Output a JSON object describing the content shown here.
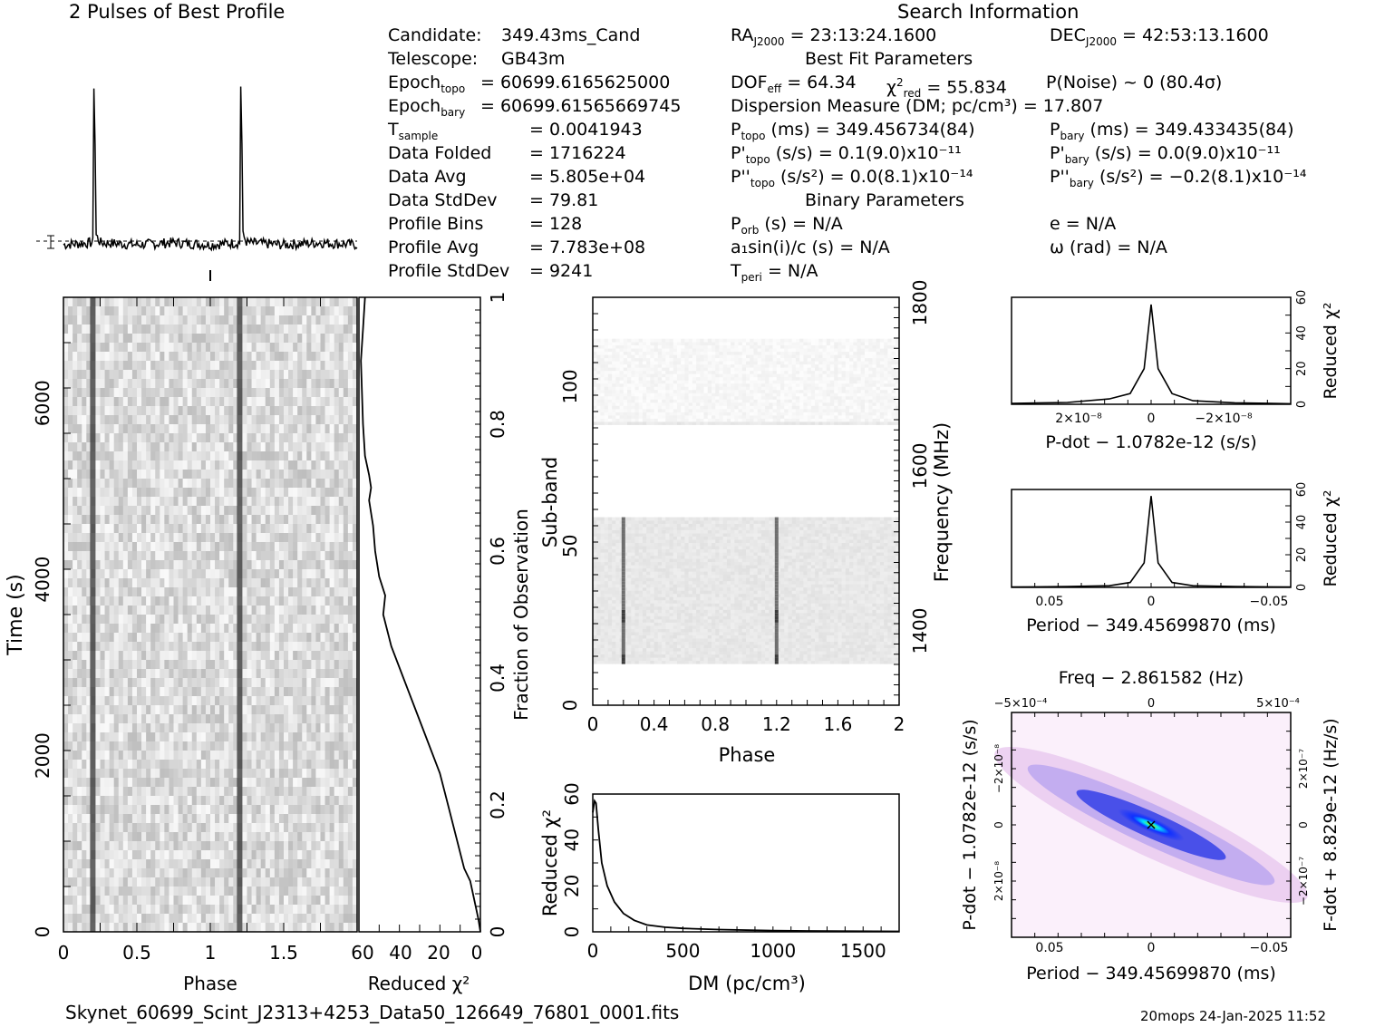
{
  "header": {
    "profile_title": "2 Pulses of Best Profile",
    "search_title": "Search Information",
    "best_fit_title": "Best Fit Parameters",
    "binary_title": "Binary Parameters"
  },
  "candidate_info": [
    {
      "label": "Candidate:",
      "value": "349.43ms_Cand"
    },
    {
      "label": "Telescope:",
      "value": "GB43m"
    },
    {
      "label": "Epoch",
      "sub": "topo",
      "value": "= 60699.6165625000"
    },
    {
      "label": "Epoch",
      "sub": "bary",
      "value": "= 60699.61565669745"
    },
    {
      "label": "T",
      "sub": "sample",
      "value": "=   0.0041943"
    },
    {
      "label": "Data Folded",
      "value": "=   1716224"
    },
    {
      "label": "Data Avg",
      "value": "=   5.805e+04"
    },
    {
      "label": "Data StdDev",
      "value": "=   79.81"
    },
    {
      "label": "Profile Bins",
      "value": "=   128"
    },
    {
      "label": "Profile Avg",
      "value": "=   7.783e+08"
    },
    {
      "label": "Profile StdDev",
      "value": "=   9241"
    }
  ],
  "search": {
    "ra": "= 23:13:24.1600",
    "dec": "= 42:53:13.1600",
    "dof": "= 64.34",
    "chi2red": "= 55.834",
    "pnoise": "P(Noise) ~ 0    (80.4σ)",
    "dm": "Dispersion Measure (DM; pc/cm³) = 17.807",
    "ptopo": "(ms) =   349.456734(84)",
    "pbary": "(ms) =   349.433435(84)",
    "pdtopo": "(s/s) =  0.1(9.0)x10⁻¹¹",
    "pdbary": "(s/s) = 0.0(9.0)x10⁻¹¹",
    "pddtopo": "(s/s²) = 0.0(8.1)x10⁻¹⁴",
    "pddbary": "(s/s²) = −0.2(8.1)x10⁻¹⁴",
    "porb": "(s) = N/A",
    "ecc": "e = N/A",
    "a1": "a₁sin(i)/c (s) = N/A",
    "omega": "ω (rad) = N/A",
    "tperi": "= N/A"
  },
  "footer": {
    "filename": "Skynet_60699_Scint_J2313+4253_Data50_126649_76801_0001.fits",
    "stamp": "20mops 24-Jan-2025 11:52"
  },
  "colors": {
    "ink": "#000000",
    "grey_map": "#808080",
    "ppdot_blue": "#1a1aff",
    "ppdot_magenta": "#f0c8f0"
  },
  "chart_data": [
    {
      "type": "line",
      "name": "profile",
      "x": [
        0.0,
        0.2,
        0.21,
        0.22,
        0.25,
        0.5,
        0.75,
        1.0,
        1.2,
        1.21,
        1.22,
        1.25,
        1.5,
        1.75,
        2.0
      ],
      "y": [
        0.0,
        0.01,
        1.0,
        0.05,
        0.01,
        0.0,
        0.01,
        0.0,
        0.01,
        1.0,
        0.05,
        0.01,
        0.0,
        0.01,
        0.0
      ],
      "xlim": [
        0,
        2
      ]
    },
    {
      "type": "heatmap",
      "name": "time-phase",
      "xlabel": "Phase",
      "ylabel": "Time (s)",
      "xticks": [
        "0",
        "0.5",
        "1",
        "1.5"
      ],
      "yticks": [
        "0",
        "2000",
        "4000",
        "6000"
      ],
      "xlim": [
        0,
        2
      ],
      "ylim": [
        0,
        7200
      ],
      "pulse_phases": [
        0.2,
        1.2
      ]
    },
    {
      "type": "line",
      "name": "chi2-vs-time",
      "xlabel": "Reduced χ²",
      "ylabel": "Fraction of Observation",
      "xticks": [
        "60",
        "40",
        "20",
        "0"
      ],
      "yticks": [
        "0.2",
        "0.4",
        "0.6",
        "0.8",
        "1"
      ],
      "xlim": [
        60,
        0
      ],
      "ylim": [
        0,
        1
      ],
      "x": [
        0,
        1,
        3,
        5,
        8,
        12,
        16,
        20,
        26,
        32,
        38,
        44,
        48,
        47,
        50,
        52,
        53,
        55,
        54,
        55,
        57,
        58,
        59,
        58,
        57
      ],
      "y": [
        0,
        0.02,
        0.05,
        0.08,
        0.1,
        0.15,
        0.2,
        0.25,
        0.3,
        0.35,
        0.4,
        0.45,
        0.5,
        0.53,
        0.56,
        0.6,
        0.64,
        0.68,
        0.7,
        0.72,
        0.75,
        0.8,
        0.9,
        0.95,
        1.0
      ]
    },
    {
      "type": "heatmap",
      "name": "subband-phase",
      "xlabel": "Phase",
      "ylabel": "Sub-band",
      "y2label": "Frequency (MHz)",
      "xticks": [
        "0",
        "0.4",
        "0.8",
        "1.2",
        "1.6",
        "2"
      ],
      "yticks": [
        "0",
        "50",
        "100"
      ],
      "y2ticks": [
        "1400",
        "1600",
        "1800"
      ],
      "xlim": [
        0,
        2
      ],
      "ylim": [
        0,
        128
      ],
      "empty_bands": [
        [
          0,
          13
        ],
        [
          59,
          88
        ],
        [
          115,
          128
        ]
      ],
      "pulse_phases": [
        0.2,
        1.2
      ]
    },
    {
      "type": "line",
      "name": "dm-curve",
      "xlabel": "DM (pc/cm³)",
      "ylabel": "Reduced χ²",
      "xticks": [
        "0",
        "500",
        "1000",
        "1500"
      ],
      "yticks": [
        "0",
        "20",
        "40",
        "60"
      ],
      "xlim": [
        0,
        1700
      ],
      "ylim": [
        0,
        60
      ],
      "x": [
        0,
        10,
        18,
        30,
        50,
        80,
        120,
        170,
        230,
        300,
        400,
        500,
        700,
        1000,
        1300,
        1700
      ],
      "y": [
        52,
        57,
        56,
        45,
        30,
        20,
        13,
        8,
        5,
        3,
        2,
        1.5,
        1,
        0.5,
        0.3,
        0.2
      ]
    },
    {
      "type": "line",
      "name": "pdot-curve",
      "xlabel": "P-dot − 1.0782e-12 (s/s)",
      "ylabel": "Reduced χ²",
      "xticks": [
        "2×10⁻⁸",
        "0",
        "−2×10⁻⁸"
      ],
      "yticks": [
        "0",
        "20",
        "40",
        "60"
      ],
      "ylim": [
        0,
        60
      ],
      "x": [
        -1,
        -0.6,
        -0.3,
        -0.15,
        -0.05,
        0,
        0.05,
        0.15,
        0.3,
        0.6,
        1
      ],
      "y": [
        0.5,
        1,
        3,
        6,
        20,
        56,
        20,
        6,
        2,
        0.8,
        0.3
      ]
    },
    {
      "type": "line",
      "name": "period-curve",
      "xlabel": "Period − 349.45699870 (ms)",
      "ylabel": "Reduced χ²",
      "xticks": [
        "0.05",
        "0",
        "−0.05"
      ],
      "yticks": [
        "0",
        "20",
        "40",
        "60"
      ],
      "ylim": [
        0,
        60
      ],
      "x": [
        -1,
        -0.6,
        -0.3,
        -0.15,
        -0.05,
        0,
        0.05,
        0.15,
        0.3,
        0.6,
        1
      ],
      "y": [
        0.2,
        0.5,
        1,
        3,
        15,
        56,
        15,
        3,
        1,
        0.5,
        0.2
      ]
    },
    {
      "type": "heatmap",
      "name": "p-pdot",
      "title": "Freq − 2.861582 (Hz)",
      "xlabel": "Period − 349.45699870 (ms)",
      "ylabel": "P-dot − 1.0782e-12 (s/s)",
      "y2label": "F-dot + 8.829e-12 (Hz/s)",
      "xticks": [
        "0.05",
        "0",
        "−0.05"
      ],
      "x2ticks": [
        "−5×10⁻⁴",
        "0",
        "5×10⁻⁴"
      ],
      "yticks": [
        "−2×10⁻⁸",
        "0",
        "2×10⁻⁸"
      ],
      "y2ticks": [
        "2×10⁻⁷",
        "0",
        "−2×10⁻⁷"
      ]
    }
  ]
}
